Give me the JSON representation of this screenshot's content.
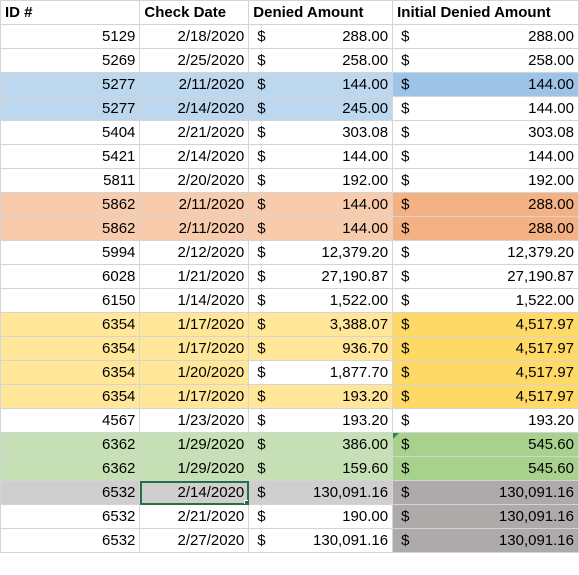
{
  "headers": [
    "ID #",
    "Check Date",
    "Denied Amount",
    "",
    "Initial Denied Amount",
    ""
  ],
  "currency_symbol": "$",
  "rows": [
    {
      "id": "5129",
      "date": "2/18/2020",
      "denied": "288.00",
      "initial": "288.00",
      "fill_left": "",
      "fill_initial": ""
    },
    {
      "id": "5269",
      "date": "2/25/2020",
      "denied": "258.00",
      "initial": "258.00",
      "fill_left": "",
      "fill_initial": ""
    },
    {
      "id": "5277",
      "date": "2/11/2020",
      "denied": "144.00",
      "initial": "144.00",
      "fill_left": "#bdd7ee",
      "fill_initial": "#9dc3e6"
    },
    {
      "id": "5277",
      "date": "2/14/2020",
      "denied": "245.00",
      "initial": "144.00",
      "fill_left": "#bdd7ee",
      "fill_initial": ""
    },
    {
      "id": "5404",
      "date": "2/21/2020",
      "denied": "303.08",
      "initial": "303.08",
      "fill_left": "",
      "fill_initial": ""
    },
    {
      "id": "5421",
      "date": "2/14/2020",
      "denied": "144.00",
      "initial": "144.00",
      "fill_left": "",
      "fill_initial": ""
    },
    {
      "id": "5811",
      "date": "2/20/2020",
      "denied": "192.00",
      "initial": "192.00",
      "fill_left": "",
      "fill_initial": ""
    },
    {
      "id": "5862",
      "date": "2/11/2020",
      "denied": "144.00",
      "initial": "288.00",
      "fill_left": "#f8cbad",
      "fill_initial": "#f4b183"
    },
    {
      "id": "5862",
      "date": "2/11/2020",
      "denied": "144.00",
      "initial": "288.00",
      "fill_left": "#f8cbad",
      "fill_initial": "#f4b183"
    },
    {
      "id": "5994",
      "date": "2/12/2020",
      "denied": "12,379.20",
      "initial": "12,379.20",
      "fill_left": "",
      "fill_initial": ""
    },
    {
      "id": "6028",
      "date": "1/21/2020",
      "denied": "27,190.87",
      "initial": "27,190.87",
      "fill_left": "",
      "fill_initial": ""
    },
    {
      "id": "6150",
      "date": "1/14/2020",
      "denied": "1,522.00",
      "initial": "1,522.00",
      "fill_left": "",
      "fill_initial": ""
    },
    {
      "id": "6354",
      "date": "1/17/2020",
      "denied": "3,388.07",
      "initial": "4,517.97",
      "fill_left": "#ffe699",
      "fill_initial": "#ffd966"
    },
    {
      "id": "6354",
      "date": "1/17/2020",
      "denied": "936.70",
      "initial": "4,517.97",
      "fill_left": "#ffe699",
      "fill_initial": "#ffd966"
    },
    {
      "id": "6354",
      "date": "1/20/2020",
      "denied": "1,877.70",
      "initial": "4,517.97",
      "fill_left": "#ffe699",
      "fill_mid": "#ffffff",
      "fill_initial": "#ffd966"
    },
    {
      "id": "6354",
      "date": "1/17/2020",
      "denied": "193.20",
      "initial": "4,517.97",
      "fill_left": "#ffe699",
      "fill_initial": "#ffd966"
    },
    {
      "id": "4567",
      "date": "1/23/2020",
      "denied": "193.20",
      "initial": "193.20",
      "fill_left": "",
      "fill_initial": ""
    },
    {
      "id": "6362",
      "date": "1/29/2020",
      "denied": "386.00",
      "initial": "545.60",
      "fill_left": "#c5e0b4",
      "fill_initial": "#a9d18e"
    },
    {
      "id": "6362",
      "date": "1/29/2020",
      "denied": "159.60",
      "initial": "545.60",
      "fill_left": "#c5e0b4",
      "fill_initial": "#a9d18e"
    },
    {
      "id": "6532",
      "date": "2/14/2020",
      "denied": "130,091.16",
      "initial": "130,091.16",
      "fill_left": "#d0cece",
      "fill_initial": "#aeaaaa"
    },
    {
      "id": "6532",
      "date": "2/21/2020",
      "denied": "190.00",
      "initial": "130,091.16",
      "fill_left": "",
      "fill_initial": "#aeaaaa"
    },
    {
      "id": "6532",
      "date": "2/27/2020",
      "denied": "130,091.16",
      "initial": "130,091.16",
      "fill_left": "",
      "fill_initial": "#aeaaaa"
    }
  ],
  "selection": {
    "active_row": 19,
    "active_col": "date"
  }
}
